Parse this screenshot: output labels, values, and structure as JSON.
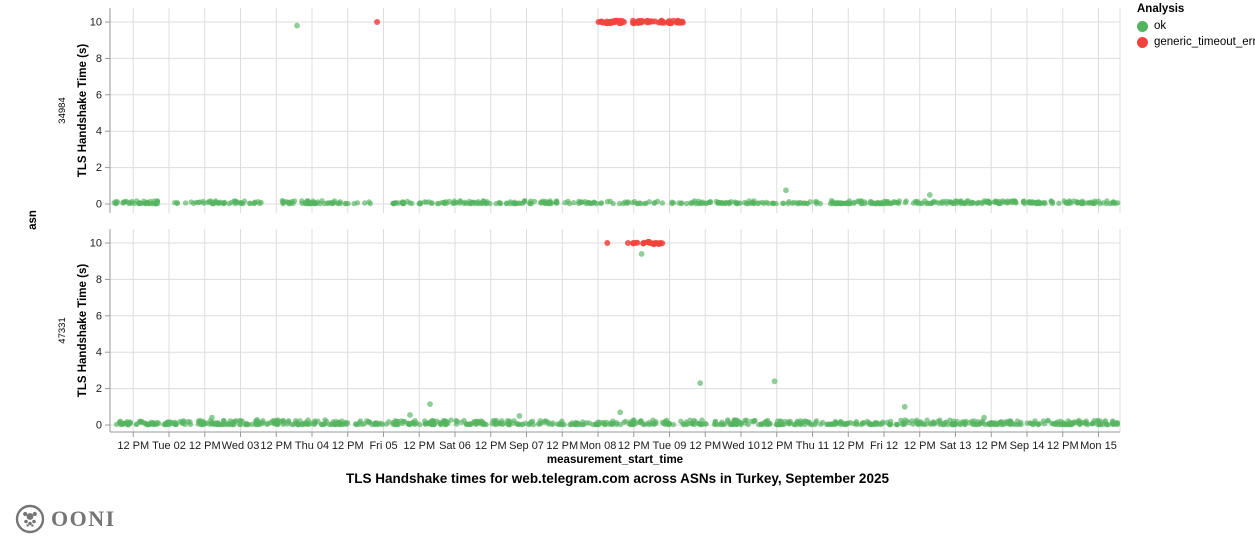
{
  "title": "TLS Handshake times for web.telegram.com across ASNs in Turkey, September 2025",
  "logo": {
    "text": "OONI"
  },
  "legend": {
    "title": "Analysis",
    "items": [
      {
        "label": "ok",
        "color": "#54b35f"
      },
      {
        "label": "generic_timeout_error",
        "color": "#f2433d"
      }
    ]
  },
  "chart_data": {
    "type": "scatter",
    "title": "TLS Handshake times for web.telegram.com across ASNs in Turkey, September 2025",
    "xlabel": "measurement_start_time",
    "ylabel": "TLS Handshake Time (s)",
    "row_label": "asn",
    "legend_title": "Analysis",
    "legend_entries": [
      "ok",
      "generic_timeout_error"
    ],
    "colors": {
      "ok": "#54b35f",
      "error": "#f2433d",
      "grid": "#dddddd",
      "axis": "#999999"
    },
    "ylim": [
      0,
      10
    ],
    "y_ticks": [
      0,
      2,
      4,
      6,
      8,
      10
    ],
    "x_domain_days": [
      1.18,
      15.3
    ],
    "x_tick_start_day": 1.5,
    "x_tick_step_days": 0.5,
    "x_tick_labels": [
      "12 PM",
      "Tue 02",
      "12 PM",
      "Wed 03",
      "12 PM",
      "Thu 04",
      "12 PM",
      "Fri 05",
      "12 PM",
      "Sat 06",
      "12 PM",
      "Sep 07",
      "12 PM",
      "Mon 08",
      "12 PM",
      "Tue 09",
      "12 PM",
      "Wed 10",
      "12 PM",
      "Thu 11",
      "12 PM",
      "Fri 12",
      "12 PM",
      "Sat 13",
      "12 PM",
      "Sep 14",
      "12 PM",
      "Mon 15"
    ],
    "facets": [
      {
        "asn": "34984",
        "ok_baseline_segments": [
          [
            1.22,
            1.87,
            40,
            0.18
          ],
          [
            1.94,
            2.43,
            8,
            0.15
          ],
          [
            2.43,
            3.06,
            35,
            0.18
          ],
          [
            3.09,
            3.3,
            8,
            0.15
          ],
          [
            3.58,
            4.53,
            55,
            0.18
          ],
          [
            4.56,
            4.84,
            5,
            0.12
          ],
          [
            5.09,
            5.68,
            25,
            0.15
          ],
          [
            5.75,
            6.49,
            40,
            0.18
          ],
          [
            6.52,
            6.66,
            4,
            0.12
          ],
          [
            6.7,
            7.44,
            40,
            0.18
          ],
          [
            7.47,
            8.0,
            20,
            0.15
          ],
          [
            8.0,
            9.19,
            30,
            0.15
          ],
          [
            9.22,
            10.2,
            50,
            0.18
          ],
          [
            10.22,
            10.97,
            25,
            0.15
          ],
          [
            11.0,
            15.27,
            230,
            0.18
          ]
        ],
        "ok_outliers": [
          [
            3.79,
            9.8
          ],
          [
            10.63,
            0.75
          ],
          [
            12.64,
            0.5
          ]
        ],
        "error_singles": [
          [
            4.91,
            10
          ]
        ],
        "error_clusters": [
          [
            8.0,
            8.38,
            26,
            10
          ],
          [
            8.49,
            9.19,
            48,
            10
          ]
        ]
      },
      {
        "asn": "47331",
        "ok_baseline_segments": [
          [
            1.22,
            2.2,
            65,
            0.22
          ],
          [
            2.2,
            3.2,
            60,
            0.25
          ],
          [
            3.2,
            4.2,
            70,
            0.3
          ],
          [
            4.2,
            5.2,
            55,
            0.25
          ],
          [
            5.2,
            6.2,
            60,
            0.28
          ],
          [
            6.2,
            7.2,
            55,
            0.25
          ],
          [
            7.2,
            8.2,
            50,
            0.22
          ],
          [
            8.2,
            9.2,
            50,
            0.28
          ],
          [
            9.2,
            10.2,
            60,
            0.3
          ],
          [
            10.2,
            11.2,
            55,
            0.25
          ],
          [
            11.2,
            12.2,
            55,
            0.22
          ],
          [
            12.2,
            13.2,
            60,
            0.28
          ],
          [
            13.2,
            14.2,
            60,
            0.25
          ],
          [
            14.2,
            15.27,
            70,
            0.25
          ]
        ],
        "ok_outliers": [
          [
            5.37,
            0.55
          ],
          [
            5.65,
            1.15
          ],
          [
            8.31,
            0.7
          ],
          [
            8.61,
            9.4
          ],
          [
            9.43,
            2.3
          ],
          [
            10.47,
            2.4
          ],
          [
            12.29,
            1.0
          ],
          [
            2.6,
            0.4
          ],
          [
            6.9,
            0.5
          ],
          [
            13.4,
            0.4
          ]
        ],
        "error_singles": [
          [
            8.13,
            10
          ],
          [
            8.42,
            10
          ]
        ],
        "error_clusters": [
          [
            8.49,
            8.9,
            22,
            10
          ]
        ]
      }
    ]
  }
}
